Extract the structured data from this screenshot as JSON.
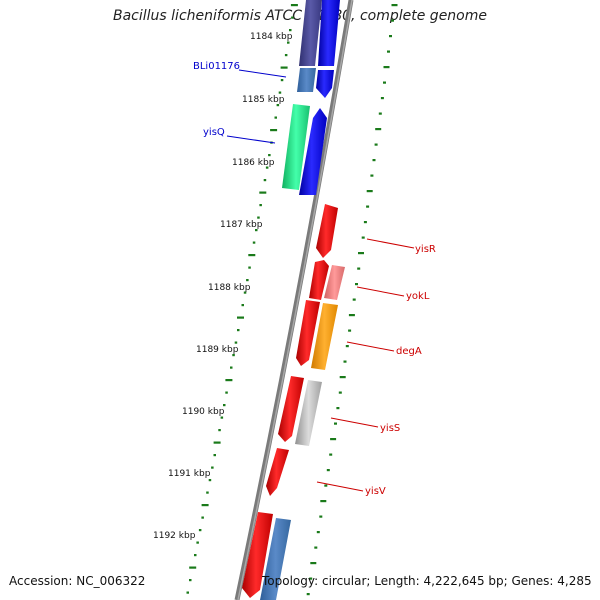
{
  "title": "Bacillus licheniformis ATCC 14580, complete genome",
  "footer": {
    "accession": "Accession: NC_006322",
    "summary": "Topology: circular; Length: 4,222,645 bp; Genes: 4,285"
  },
  "ticks": [
    {
      "label": "1184 kbp"
    },
    {
      "label": "1185 kbp"
    },
    {
      "label": "1186 kbp"
    },
    {
      "label": "1187 kbp"
    },
    {
      "label": "1188 kbp"
    },
    {
      "label": "1189 kbp"
    },
    {
      "label": "1190 kbp"
    },
    {
      "label": "1191 kbp"
    },
    {
      "label": "1192 kbp"
    }
  ],
  "gene_labels": [
    {
      "name": "BLi01176",
      "color": "#0000cc"
    },
    {
      "name": "yisQ",
      "color": "#0000cc"
    },
    {
      "name": "yisR",
      "color": "#cc0000"
    },
    {
      "name": "yokL",
      "color": "#cc0000"
    },
    {
      "name": "degA",
      "color": "#cc0000"
    },
    {
      "name": "yisS",
      "color": "#cc0000"
    },
    {
      "name": "yisV",
      "color": "#cc0000"
    }
  ],
  "colors": {
    "backbone": "#808080",
    "tick": "#1a7a1a",
    "forward_strand": "#0000ee",
    "reverse_strand": "#ee0000",
    "cog_purple": "#4a4a99",
    "cog_steelblue": "#4a7ab8",
    "cog_green": "#22dd88",
    "cog_pink": "#f08080",
    "cog_orange": "#ff9900",
    "cog_gray": "#b8b8b8"
  }
}
